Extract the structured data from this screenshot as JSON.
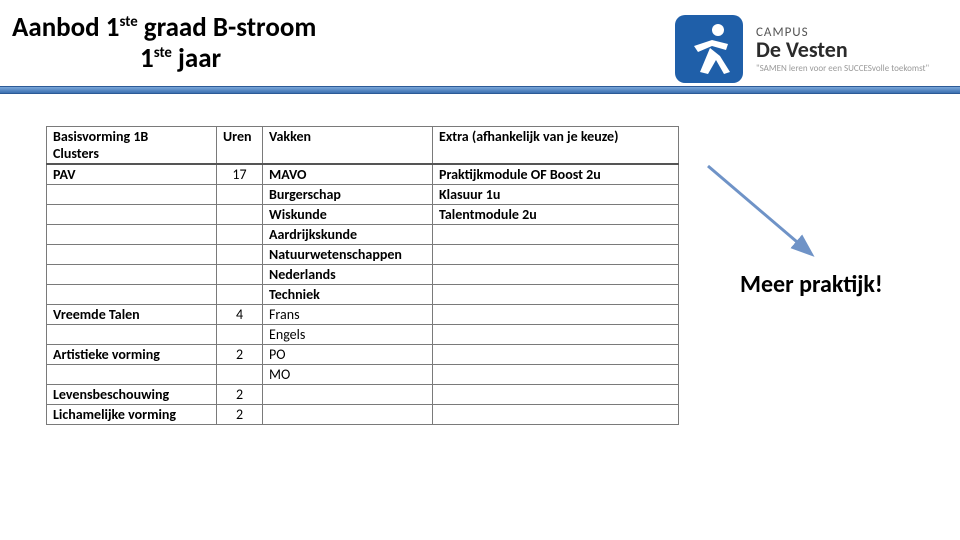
{
  "title": {
    "line1_pre": "Aanbod 1",
    "line1_sup": "ste",
    "line1_post": " graad B-stroom",
    "line2_pre": "1",
    "line2_sup": "ste",
    "line2_post": " jaar"
  },
  "logo": {
    "campus": "CAMPUS",
    "name": "De Vesten",
    "tagline": "\"SAMEN leren voor een SUCCESvolle toekomst\"",
    "mark_bg": "#1f5fa9",
    "mark_figure": "#ffffff"
  },
  "bar_color_top": "#7aa7d9",
  "bar_color_bottom": "#3b6fb0",
  "callout": "Meer praktijk!",
  "arrow_color": "#6f93c7",
  "table": {
    "headers": {
      "cluster_l1": "Basisvorming 1B",
      "cluster_l2": "Clusters",
      "uren": "Uren",
      "vakken": "Vakken",
      "extra": "Extra (afhankelijk van je keuze)"
    },
    "rows": [
      {
        "cluster": "PAV",
        "uren": "17",
        "vak": "MAVO",
        "extra": "Praktijkmodule OF Boost 2u",
        "bold": true
      },
      {
        "cluster": "",
        "uren": "",
        "vak": "Burgerschap",
        "extra": "Klasuur 1u",
        "bold": true
      },
      {
        "cluster": "",
        "uren": "",
        "vak": "Wiskunde",
        "extra": "Talentmodule 2u",
        "bold": true
      },
      {
        "cluster": "",
        "uren": "",
        "vak": "Aardrijkskunde",
        "extra": "",
        "bold": true
      },
      {
        "cluster": "",
        "uren": "",
        "vak": "Natuurwetenschappen",
        "extra": "",
        "bold": true
      },
      {
        "cluster": "",
        "uren": "",
        "vak": "Nederlands",
        "extra": "",
        "bold": true
      },
      {
        "cluster": "",
        "uren": "",
        "vak": "Techniek",
        "extra": "",
        "bold": true
      },
      {
        "cluster": "Vreemde Talen",
        "uren": "4",
        "vak": "Frans",
        "extra": "",
        "bold": false
      },
      {
        "cluster": "",
        "uren": "",
        "vak": "Engels",
        "extra": "",
        "bold": false
      },
      {
        "cluster": "Artistieke vorming",
        "uren": "2",
        "vak": "PO",
        "extra": "",
        "bold": false
      },
      {
        "cluster": "",
        "uren": "",
        "vak": "MO",
        "extra": "",
        "bold": false
      },
      {
        "cluster": "Levensbeschouwing",
        "uren": "2",
        "vak": "",
        "extra": "",
        "bold": false
      },
      {
        "cluster": "Lichamelijke vorming",
        "uren": "2",
        "vak": "",
        "extra": "",
        "bold": false
      }
    ]
  }
}
